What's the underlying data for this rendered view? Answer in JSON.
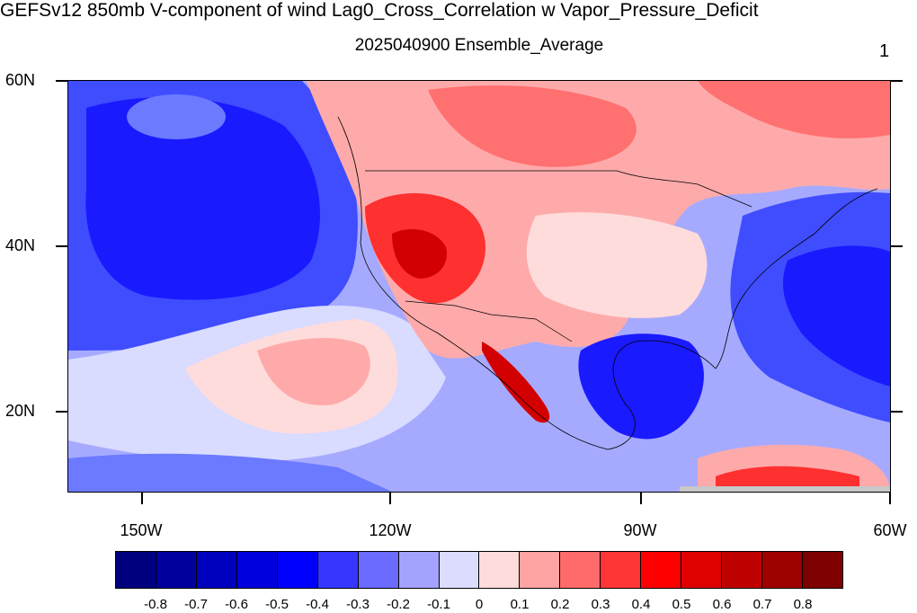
{
  "title": "GEFSv12 850mb V-component of wind Lag0_Cross_Correlation w Vapor_Pressure_Deficit",
  "subtitle": "2025040900 Ensemble_Average",
  "panel_number": "1",
  "map": {
    "lat_labels": [
      "60N",
      "40N",
      "20N"
    ],
    "lon_labels": [
      "150W",
      "120W",
      "90W",
      "60W"
    ],
    "colors": {
      "strong_negative": "#1a1aff",
      "negative": "#3f4dff",
      "mild_negative": "#6b7aff",
      "weak_negative": "#a6aaff",
      "near_zero_neg": "#d9dbff",
      "near_zero_pos": "#ffdcdc",
      "weak_positive": "#ffaaaa",
      "mild_positive": "#ff7070",
      "positive": "#ff3030",
      "strong_positive": "#d20000",
      "land_boundary": "#000000",
      "missing": "#c8c8c8"
    }
  },
  "colorbar": {
    "labels": [
      "-0.8",
      "-0.7",
      "-0.6",
      "-0.5",
      "-0.4",
      "-0.3",
      "-0.2",
      "-0.1",
      "0",
      "0.1",
      "0.2",
      "0.3",
      "0.4",
      "0.5",
      "0.6",
      "0.7",
      "0.8"
    ],
    "colors": [
      "#00007f",
      "#00009f",
      "#0000bf",
      "#0000df",
      "#0000ff",
      "#3636ff",
      "#6b6bff",
      "#a3a3ff",
      "#dcdcff",
      "#ffdcdc",
      "#ffa3a3",
      "#ff6b6b",
      "#ff3636",
      "#ff0000",
      "#df0000",
      "#bf0000",
      "#9f0000",
      "#7f0000"
    ]
  }
}
